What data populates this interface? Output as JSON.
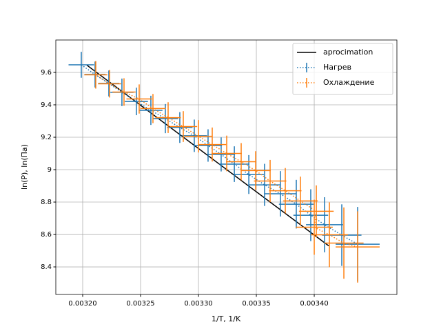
{
  "chart_data": {
    "type": "errorbar",
    "xlabel": "1/T, 1/K",
    "ylabel": "ln(P), ln(Па)",
    "xlim": [
      0.0031768,
      0.0034714
    ],
    "ylim": [
      8.23,
      9.8
    ],
    "xticks": [
      {
        "value": 0.0032,
        "label": "0.00320"
      },
      {
        "value": 0.00325,
        "label": "0.00325"
      },
      {
        "value": 0.0033,
        "label": "0.00330"
      },
      {
        "value": 0.00335,
        "label": "0.00335"
      },
      {
        "value": 0.0034,
        "label": "0.00340"
      }
    ],
    "yticks": [
      8.4,
      8.6,
      8.8,
      9.0,
      9.2,
      9.4,
      9.6
    ],
    "grid": true,
    "legend": "upper right",
    "series": [
      {
        "name": "aprocimation",
        "kind": "line",
        "color": "#000000",
        "x": [
          0.0032036,
          0.0034125
        ],
        "values": [
          9.645,
          8.53
        ]
      },
      {
        "name": "Нагрев",
        "kind": "errorbar",
        "color": "#1f77b4",
        "x": [
          0.0031988,
          0.0032107,
          0.0032226,
          0.0032339,
          0.0032464,
          0.0032589,
          0.0032714,
          0.0032839,
          0.0032964,
          0.0033083,
          0.0033196,
          0.003331,
          0.0033435,
          0.0033571,
          0.0033708,
          0.0033845,
          0.003397,
          0.0034089,
          0.0034238,
          0.0034375
        ],
        "values": [
          9.647,
          9.587,
          9.532,
          9.477,
          9.421,
          9.366,
          9.315,
          9.26,
          9.209,
          9.149,
          9.094,
          9.034,
          8.97,
          8.906,
          8.851,
          8.787,
          8.719,
          8.66,
          8.596,
          8.54
        ],
        "xerr": [
          1.1e-05,
          9e-06,
          9e-06,
          1e-05,
          1e-05,
          1e-05,
          1.1e-05,
          1.1e-05,
          1.1e-05,
          1.2e-05,
          1.2e-05,
          1.3e-05,
          1.3e-05,
          1.4e-05,
          1.4e-05,
          1.5e-05,
          1.5e-05,
          1.6e-05,
          1.7e-05,
          1.9e-05
        ],
        "yerr": [
          0.08,
          0.08,
          0.08,
          0.085,
          0.085,
          0.09,
          0.09,
          0.095,
          0.1,
          0.1,
          0.105,
          0.11,
          0.12,
          0.13,
          0.14,
          0.15,
          0.16,
          0.17,
          0.19,
          0.23
        ]
      },
      {
        "name": "Охлаждение",
        "kind": "errorbar",
        "color": "#ff7f0e",
        "x": [
          0.0032113,
          0.0032232,
          0.0032357,
          0.0032488,
          0.0032607,
          0.0032738,
          0.0032869,
          0.0033,
          0.0033119,
          0.0033244,
          0.0033369,
          0.0033494,
          0.0033619,
          0.003375,
          0.0033881,
          0.0034018,
          0.0034,
          0.0034131,
          0.0034256,
          0.0034375
        ],
        "values": [
          9.585,
          9.53,
          9.479,
          9.436,
          9.377,
          9.321,
          9.266,
          9.206,
          9.155,
          9.1,
          9.049,
          8.994,
          8.93,
          8.87,
          8.807,
          8.743,
          8.645,
          8.598,
          8.547,
          8.523
        ],
        "xerr": [
          1e-05,
          1e-05,
          1e-05,
          1.1e-05,
          1.1e-05,
          1.1e-05,
          1.2e-05,
          1.2e-05,
          1.2e-05,
          1.3e-05,
          1.3e-05,
          1.3e-05,
          1.4e-05,
          1.4e-05,
          1.5e-05,
          1.5e-05,
          1.6e-05,
          1.6e-05,
          1.7e-05,
          1.9e-05
        ],
        "yerr": [
          0.085,
          0.085,
          0.085,
          0.09,
          0.09,
          0.095,
          0.095,
          0.1,
          0.105,
          0.11,
          0.115,
          0.12,
          0.13,
          0.14,
          0.15,
          0.16,
          0.17,
          0.2,
          0.22,
          0.22
        ]
      }
    ]
  }
}
